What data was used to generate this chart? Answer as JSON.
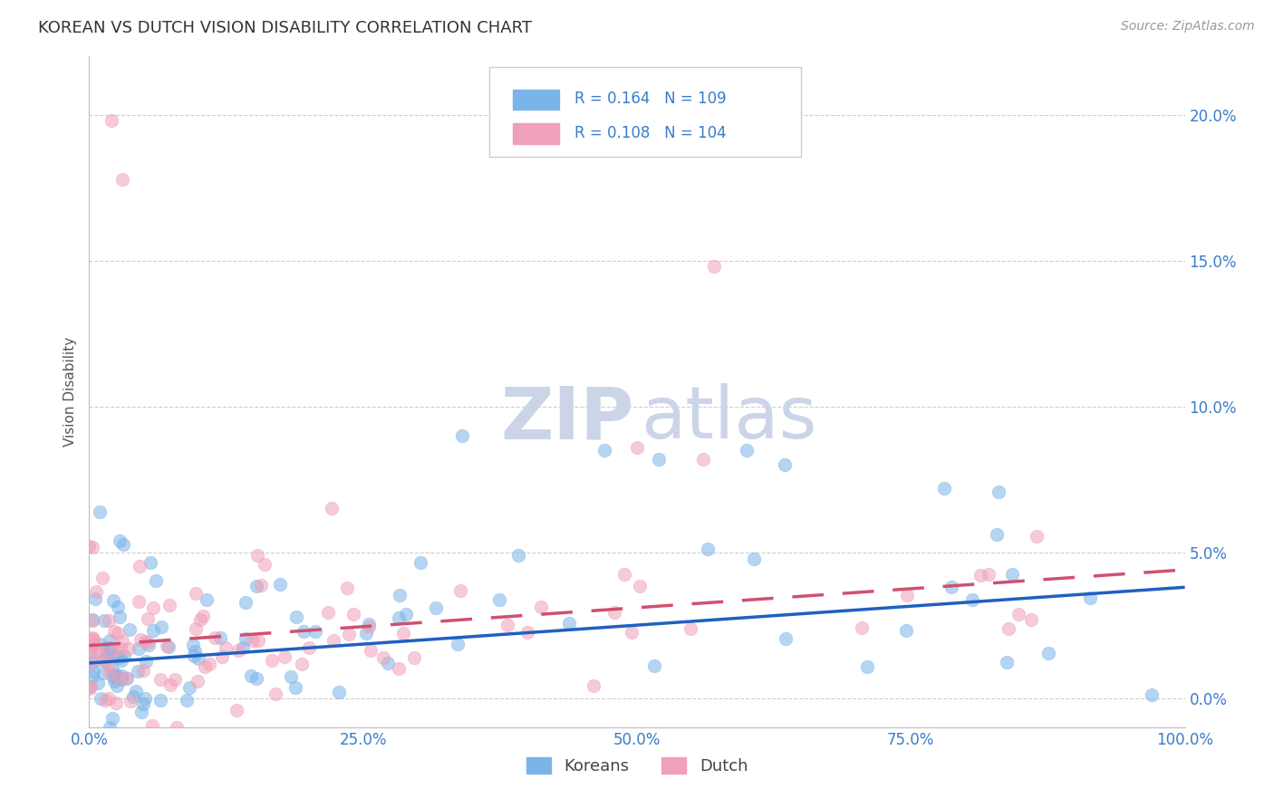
{
  "title": "KOREAN VS DUTCH VISION DISABILITY CORRELATION CHART",
  "source": "Source: ZipAtlas.com",
  "ylabel": "Vision Disability",
  "xlim": [
    0,
    1.0
  ],
  "ylim": [
    -0.01,
    0.22
  ],
  "yticks": [
    0.0,
    0.05,
    0.1,
    0.15,
    0.2
  ],
  "ytick_labels": [
    "0.0%",
    "5.0%",
    "10.0%",
    "15.0%",
    "20.0%"
  ],
  "xticks": [
    0.0,
    0.25,
    0.5,
    0.75,
    1.0
  ],
  "xtick_labels": [
    "0.0%",
    "25.0%",
    "50.0%",
    "75.0%",
    "100.0%"
  ],
  "korean_color": "#7ab4e8",
  "dutch_color": "#f0a0b8",
  "trend_korean_color": "#2060c0",
  "trend_dutch_color": "#d05070",
  "axis_color": "#3a7dc9",
  "R_korean": 0.164,
  "N_korean": 109,
  "R_dutch": 0.108,
  "N_dutch": 104,
  "background_color": "#ffffff",
  "grid_color": "#bbbbbb",
  "watermark_color": "#ccd5e8",
  "title_fontsize": 13,
  "axis_label_fontsize": 11,
  "tick_fontsize": 12
}
